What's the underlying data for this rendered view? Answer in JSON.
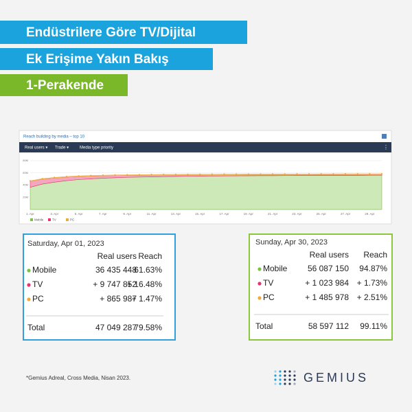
{
  "header": {
    "lines": [
      "Endüstrilere Göre TV/Dijital",
      "Ek Erişime Yakın Bakış",
      "1-Perakende"
    ]
  },
  "widget": {
    "title": "Reach building by media – top 10",
    "toolbar": [
      "Real users ▾",
      "Trade ▾",
      "Media type priority"
    ],
    "menu": "⋮"
  },
  "chart_data": {
    "type": "stacked-area",
    "categories": [
      "1. Apr",
      null,
      "3. Apr",
      null,
      "5. Apr",
      null,
      "7. Apr",
      null,
      "9. Apr",
      null,
      "11. Apr",
      null,
      "13. Apr",
      null,
      "15. Apr",
      null,
      "17. Apr",
      null,
      "19. Apr",
      null,
      "21. Apr",
      null,
      "23. Apr",
      null,
      "25. Apr",
      null,
      "27. Apr",
      null,
      "29. Apr",
      null
    ],
    "series": [
      {
        "name": "Mobile",
        "color": "#7cc242",
        "values": [
          36.4,
          41.6,
          44.7,
          47.2,
          49.0,
          50.2,
          51.2,
          52.0,
          52.7,
          53.1,
          53.5,
          53.9,
          54.2,
          54.5,
          54.6,
          54.8,
          55.0,
          55.1,
          55.3,
          55.4,
          55.4,
          55.5,
          55.6,
          55.7,
          55.8,
          55.9,
          55.9,
          55.9,
          56.1,
          56.1
        ]
      },
      {
        "name": "TV",
        "color": "#e8336f",
        "values": [
          9.7,
          8.0,
          6.8,
          5.8,
          5.0,
          4.4,
          3.9,
          3.5,
          3.1,
          2.8,
          2.6,
          2.4,
          2.2,
          2.0,
          1.9,
          1.8,
          1.7,
          1.6,
          1.5,
          1.4,
          1.4,
          1.3,
          1.3,
          1.2,
          1.2,
          1.1,
          1.1,
          1.1,
          1.0,
          1.0
        ]
      },
      {
        "name": "PC",
        "color": "#f2a93b",
        "values": [
          0.9,
          0.9,
          1.0,
          1.0,
          1.0,
          1.1,
          1.1,
          1.1,
          1.1,
          1.2,
          1.2,
          1.2,
          1.2,
          1.2,
          1.3,
          1.3,
          1.3,
          1.3,
          1.3,
          1.3,
          1.4,
          1.4,
          1.4,
          1.4,
          1.4,
          1.4,
          1.5,
          1.5,
          1.5,
          1.5
        ]
      }
    ],
    "ylim": [
      0,
      80
    ],
    "yticks": [
      {
        "value": 20,
        "label": "20M"
      },
      {
        "value": 40,
        "label": "40M"
      },
      {
        "value": 60,
        "label": "60M"
      },
      {
        "value": 80,
        "label": "80M"
      }
    ],
    "grid": true
  },
  "tables": [
    {
      "date": "Saturday, Apr 01, 2023",
      "columns": [
        "Real users",
        "Reach"
      ],
      "rows": [
        [
          "Mobile",
          "36 435 448",
          "61.63%"
        ],
        [
          "TV",
          "+ 9 747 852",
          "+ 16.48%"
        ],
        [
          "PC",
          "+ 865 987",
          "+ 1.47%"
        ]
      ],
      "total": [
        "Total",
        "47 049 287",
        "79.58%"
      ]
    },
    {
      "date": "Sunday, Apr 30, 2023",
      "columns": [
        "Real users",
        "Reach"
      ],
      "rows": [
        [
          "Mobile",
          "56 087 150",
          "94.87%"
        ],
        [
          "TV",
          "+ 1 023 984",
          "+ 1.73%"
        ],
        [
          "PC",
          "+ 1 485 978",
          "+ 2.51%"
        ]
      ],
      "total": [
        "Total",
        "58 597 112",
        "99.11%"
      ]
    }
  ],
  "footnote": "*Gemius Adreal, Cross Media, Nisan 2023.",
  "logo": "GEMIUS"
}
